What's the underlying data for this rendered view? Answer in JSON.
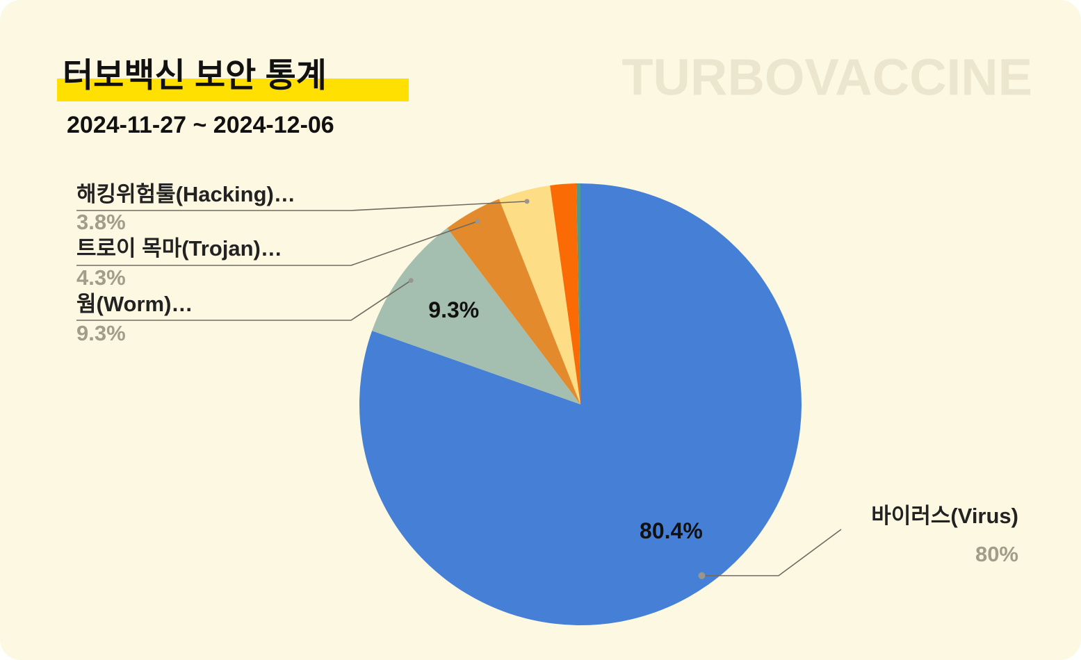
{
  "brand": "TURBOVACCINE",
  "chart_data": {
    "type": "pie",
    "title": "터보백신 보안 통계",
    "subtitle": "2024-11-27 ~ 2024-12-06",
    "categories": [
      "바이러스(Virus)",
      "웜(Worm)…",
      "트로이 목마(Trojan)…",
      "해킹위험툴(Hacking)…",
      null,
      null
    ],
    "values": [
      80.4,
      9.3,
      4.3,
      3.8,
      1.9,
      0.3
    ],
    "value_labels": [
      "80.4%",
      "9.3%",
      null,
      null,
      null,
      null
    ],
    "outer_labels": [
      "80%",
      "9.3%",
      "4.3%",
      "3.8%",
      null,
      null
    ],
    "colors": [
      "#4680d6",
      "#a4bfb0",
      "#e38b2c",
      "#fddd86",
      "#fa6b05",
      "#4e9a8f"
    ]
  }
}
